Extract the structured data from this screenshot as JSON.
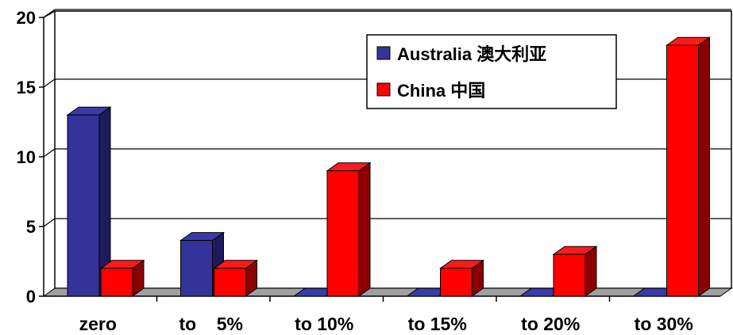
{
  "chart_data": {
    "type": "bar",
    "title": "",
    "xlabel": "",
    "ylabel": "",
    "categories": [
      "zero",
      "to    5%",
      "to 10%",
      "to 15%",
      "to 20%",
      "to 30%"
    ],
    "series": [
      {
        "name": "Australia 澳大利亚",
        "values": [
          13,
          4,
          0,
          0,
          0,
          0
        ]
      },
      {
        "name": "China 中国",
        "values": [
          2,
          2,
          9,
          2,
          3,
          18
        ]
      }
    ],
    "ylim": [
      0,
      20
    ],
    "yticks": [
      0,
      5,
      10,
      15,
      20
    ],
    "grid": true,
    "legend_position": "top-right",
    "three_d": true,
    "colors": {
      "Australia": {
        "front": "#333399",
        "top": "#3a3aa8",
        "side": "#1c1c5c"
      },
      "China": {
        "front": "#ff0000",
        "top": "#ff1a1a",
        "side": "#8b0000"
      },
      "floor": "#a0a0a0",
      "wall": "#ffffff",
      "axis": "#000000"
    }
  }
}
